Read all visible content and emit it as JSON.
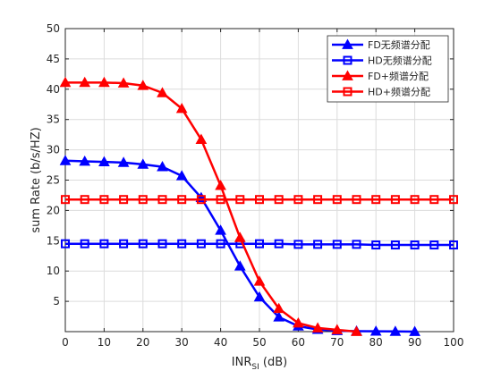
{
  "chart_data": {
    "type": "line",
    "xlabel": "INR",
    "xlabel_sub": "SI",
    "xlabel_unit": " (dB)",
    "ylabel": "sum Rate (b/s/HZ)",
    "xlim": [
      0,
      100
    ],
    "ylim": [
      0,
      50
    ],
    "xticks": [
      0,
      10,
      20,
      30,
      40,
      50,
      60,
      70,
      80,
      90,
      100
    ],
    "yticks": [
      5,
      10,
      15,
      20,
      25,
      30,
      35,
      40,
      45,
      50
    ],
    "grid": true,
    "legend_position": "top-right",
    "series": [
      {
        "name": "FD无频谱分配",
        "color": "#0000ff",
        "marker": "triangle",
        "x": [
          0,
          5,
          10,
          15,
          20,
          25,
          30,
          35,
          40,
          45,
          50,
          55,
          60,
          65,
          70,
          75,
          80,
          85,
          90
        ],
        "y": [
          28.2,
          28.1,
          28.0,
          27.9,
          27.6,
          27.2,
          25.7,
          22.1,
          16.7,
          10.8,
          5.7,
          2.4,
          0.9,
          0.35,
          0.15,
          0.08,
          0.05,
          0.03,
          0.0
        ]
      },
      {
        "name": "HD无频谱分配",
        "color": "#0000ff",
        "marker": "square",
        "x": [
          0,
          5,
          10,
          15,
          20,
          25,
          30,
          35,
          40,
          45,
          50,
          55,
          60,
          65,
          70,
          75,
          80,
          85,
          90,
          95,
          100
        ],
        "y": [
          14.5,
          14.5,
          14.5,
          14.5,
          14.5,
          14.5,
          14.5,
          14.5,
          14.5,
          14.5,
          14.5,
          14.5,
          14.4,
          14.4,
          14.4,
          14.4,
          14.3,
          14.3,
          14.3,
          14.3,
          14.3
        ]
      },
      {
        "name": "FD+频谱分配",
        "color": "#ff0000",
        "marker": "triangle",
        "x": [
          0,
          5,
          10,
          15,
          20,
          25,
          30,
          35,
          40,
          45,
          50,
          55,
          60,
          65,
          70,
          75
        ],
        "y": [
          41.1,
          41.1,
          41.1,
          41.0,
          40.6,
          39.4,
          36.8,
          31.7,
          24.1,
          15.5,
          8.3,
          3.8,
          1.4,
          0.6,
          0.3,
          0.0
        ]
      },
      {
        "name": "HD+频谱分配",
        "color": "#ff0000",
        "marker": "square",
        "x": [
          0,
          5,
          10,
          15,
          20,
          25,
          30,
          35,
          40,
          45,
          50,
          55,
          60,
          65,
          70,
          75,
          80,
          85,
          90,
          95,
          100
        ],
        "y": [
          21.8,
          21.8,
          21.8,
          21.8,
          21.8,
          21.8,
          21.8,
          21.8,
          21.8,
          21.8,
          21.8,
          21.8,
          21.8,
          21.8,
          21.8,
          21.8,
          21.8,
          21.8,
          21.8,
          21.8,
          21.8
        ]
      }
    ]
  }
}
